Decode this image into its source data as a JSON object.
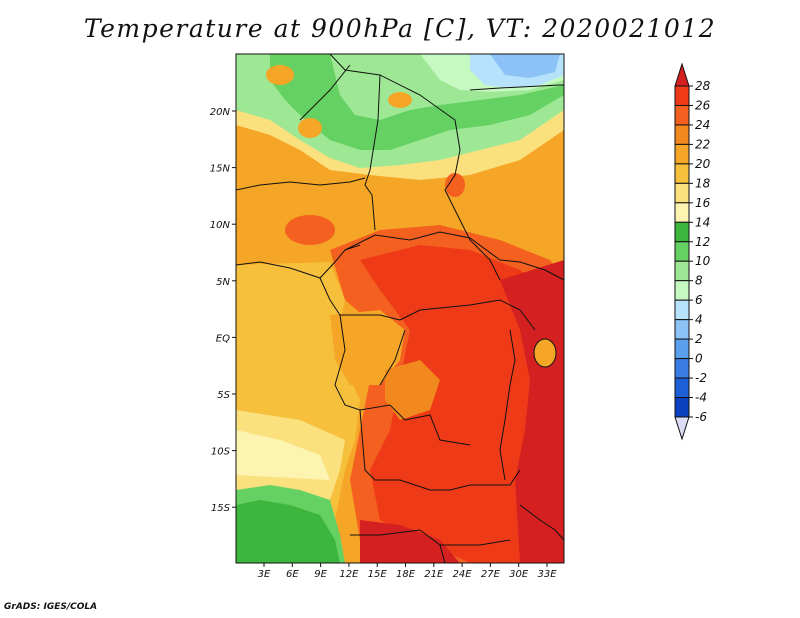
{
  "title": "Temperature at 900hPa [C], VT: 2020021012",
  "credit": "GrADS: IGES/COLA",
  "map": {
    "lon_labels": [
      "3E",
      "6E",
      "9E",
      "12E",
      "15E",
      "18E",
      "21E",
      "24E",
      "27E",
      "30E",
      "33E"
    ],
    "lat_labels": [
      "20N",
      "15N",
      "10N",
      "5N",
      "EQ",
      "5S",
      "10S",
      "15S"
    ]
  },
  "colorbar": {
    "labels": [
      "28",
      "26",
      "24",
      "22",
      "20",
      "18",
      "16",
      "14",
      "12",
      "10",
      "8",
      "6",
      "4",
      "2",
      "0",
      "-2",
      "-4",
      "-6"
    ],
    "colors": [
      "#d42020",
      "#ee3a17",
      "#f46020",
      "#f2891e",
      "#f5a626",
      "#f7c03c",
      "#fbe07e",
      "#fdf4b2",
      "#3cb63c",
      "#66d163",
      "#9ee895",
      "#c6f8c2",
      "#b6e2fb",
      "#8cc2f6",
      "#5aa0ec",
      "#3a7de2",
      "#1c5fd6",
      "#0c42c0",
      "#08238a",
      "#dcdcf4"
    ],
    "top_color": "#d42020",
    "bottom_color": "#dcdcf4"
  }
}
